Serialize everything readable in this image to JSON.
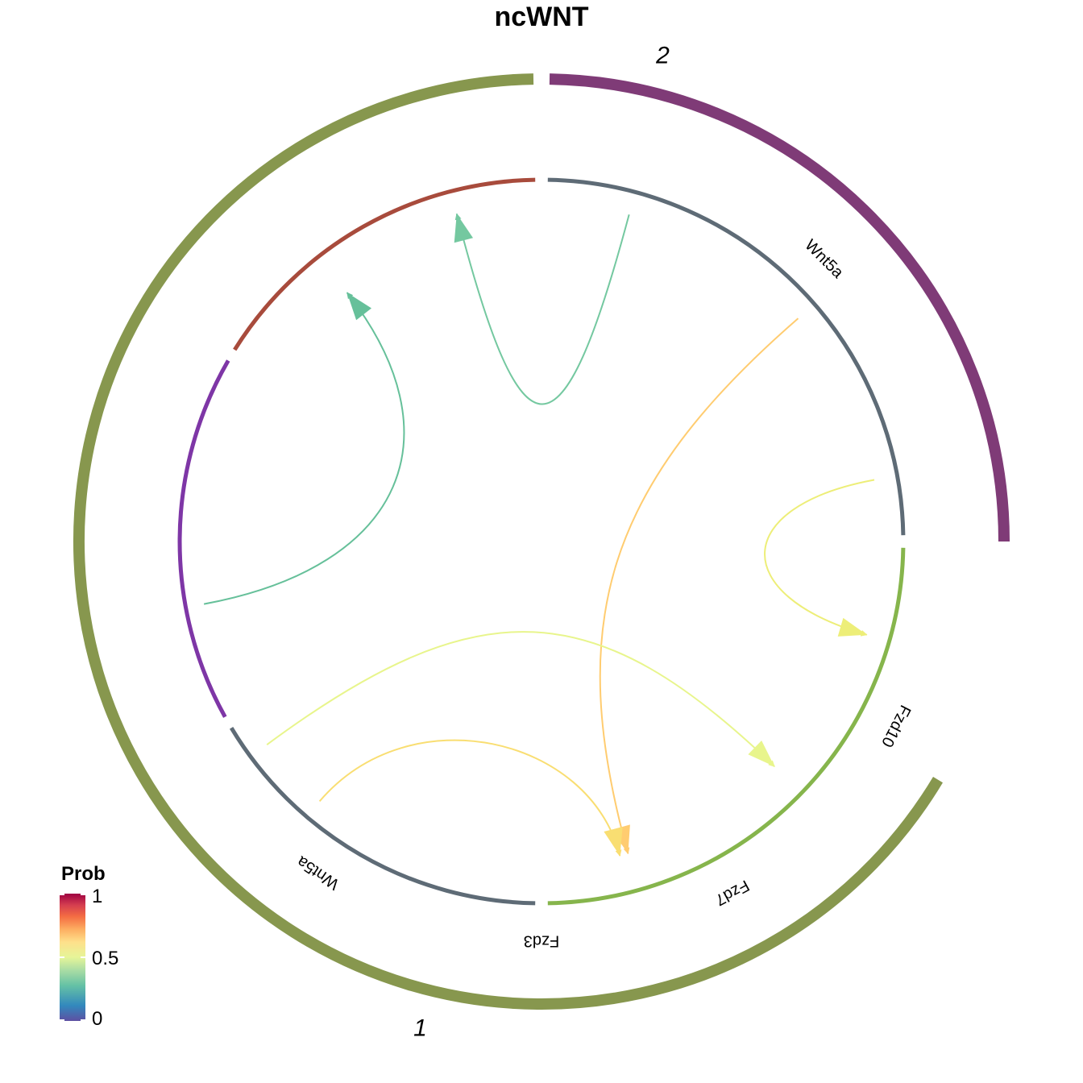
{
  "title": "ncWNT",
  "groups": [
    {
      "label": "2",
      "color": "#7F3B77",
      "start": 0,
      "end": 89
    },
    {
      "label": "1",
      "color": "#87974E",
      "start": 91,
      "end": 329
    }
  ],
  "sectors": [
    {
      "label": "Wnt5a",
      "color": "#5E6B76",
      "start": 1,
      "end": 89
    },
    {
      "label": "Fzd10",
      "color": "#A84B3C",
      "start": 91,
      "end": 148
    },
    {
      "label": "Fzd3",
      "color": "#7E36A6",
      "start": 150,
      "end": 209
    },
    {
      "label": "Wnt5a",
      "color": "#5E6B76",
      "start": 211,
      "end": 269
    },
    {
      "label": "Fzd7",
      "color": "#86B54C",
      "start": 271,
      "end": 359
    }
  ],
  "links": [
    {
      "source": "Wnt5a",
      "target": "Fzd7",
      "prob": 0.35,
      "color": "#74C8A0"
    },
    {
      "source": "Wnt5a",
      "target": "Fzd7",
      "prob": 0.35,
      "color": "#66C09A"
    },
    {
      "source": "Wnt5a",
      "target": "Fzd10",
      "prob": 0.5,
      "color": "#EDEE78"
    },
    {
      "source": "Wnt5a",
      "target": "Fzd3",
      "prob": 0.62,
      "color": "#FFCC70"
    },
    {
      "source": "Wnt5a",
      "target": "Fzd10",
      "prob": 0.5,
      "color": "#E8F58C"
    },
    {
      "source": "Wnt5a",
      "target": "Fzd3",
      "prob": 0.58,
      "color": "#F9DE72"
    }
  ],
  "legend": {
    "title": "Prob",
    "ticks": [
      "1",
      "0.5",
      "0"
    ],
    "colors": [
      "#5E4FA2",
      "#3288BD",
      "#66C2A5",
      "#ABDDA4",
      "#E6F598",
      "#FEE08B",
      "#FDAE61",
      "#F46D43",
      "#D53E4F",
      "#9E0142"
    ]
  }
}
